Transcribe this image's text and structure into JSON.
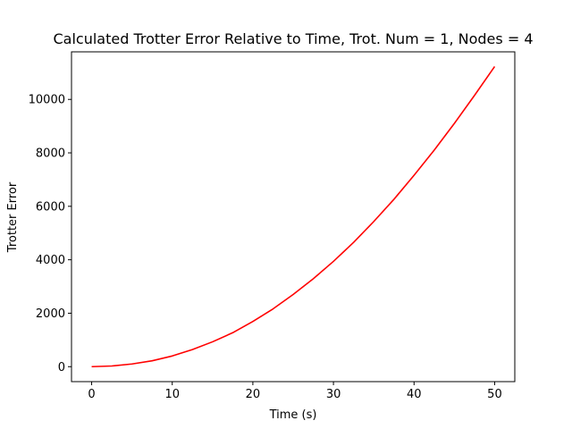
{
  "chart_data": {
    "type": "line",
    "title": "Calculated Trotter Error Relative to Time, Trot. Num = 1, Nodes = 4",
    "xlabel": "Time (s)",
    "ylabel": "Trotter Error",
    "xlim": [
      -2.5,
      52.5
    ],
    "ylim": [
      -560,
      11780
    ],
    "xticks": [
      0,
      10,
      20,
      30,
      40,
      50
    ],
    "yticks": [
      0,
      2000,
      4000,
      6000,
      8000,
      10000
    ],
    "grid": false,
    "legend": "none",
    "series": [
      {
        "color": "#ff0000",
        "x": [
          0,
          2.5,
          5,
          7.5,
          10,
          12.5,
          15,
          17.5,
          20,
          22.5,
          25,
          27.5,
          30,
          32.5,
          35,
          37.5,
          40,
          42.5,
          45,
          47.5,
          50
        ],
        "y": [
          0,
          25,
          100,
          220,
          400,
          640,
          930,
          1270,
          1690,
          2160,
          2700,
          3290,
          3940,
          4650,
          5430,
          6260,
          7160,
          8100,
          9100,
          10150,
          11230
        ]
      }
    ]
  }
}
